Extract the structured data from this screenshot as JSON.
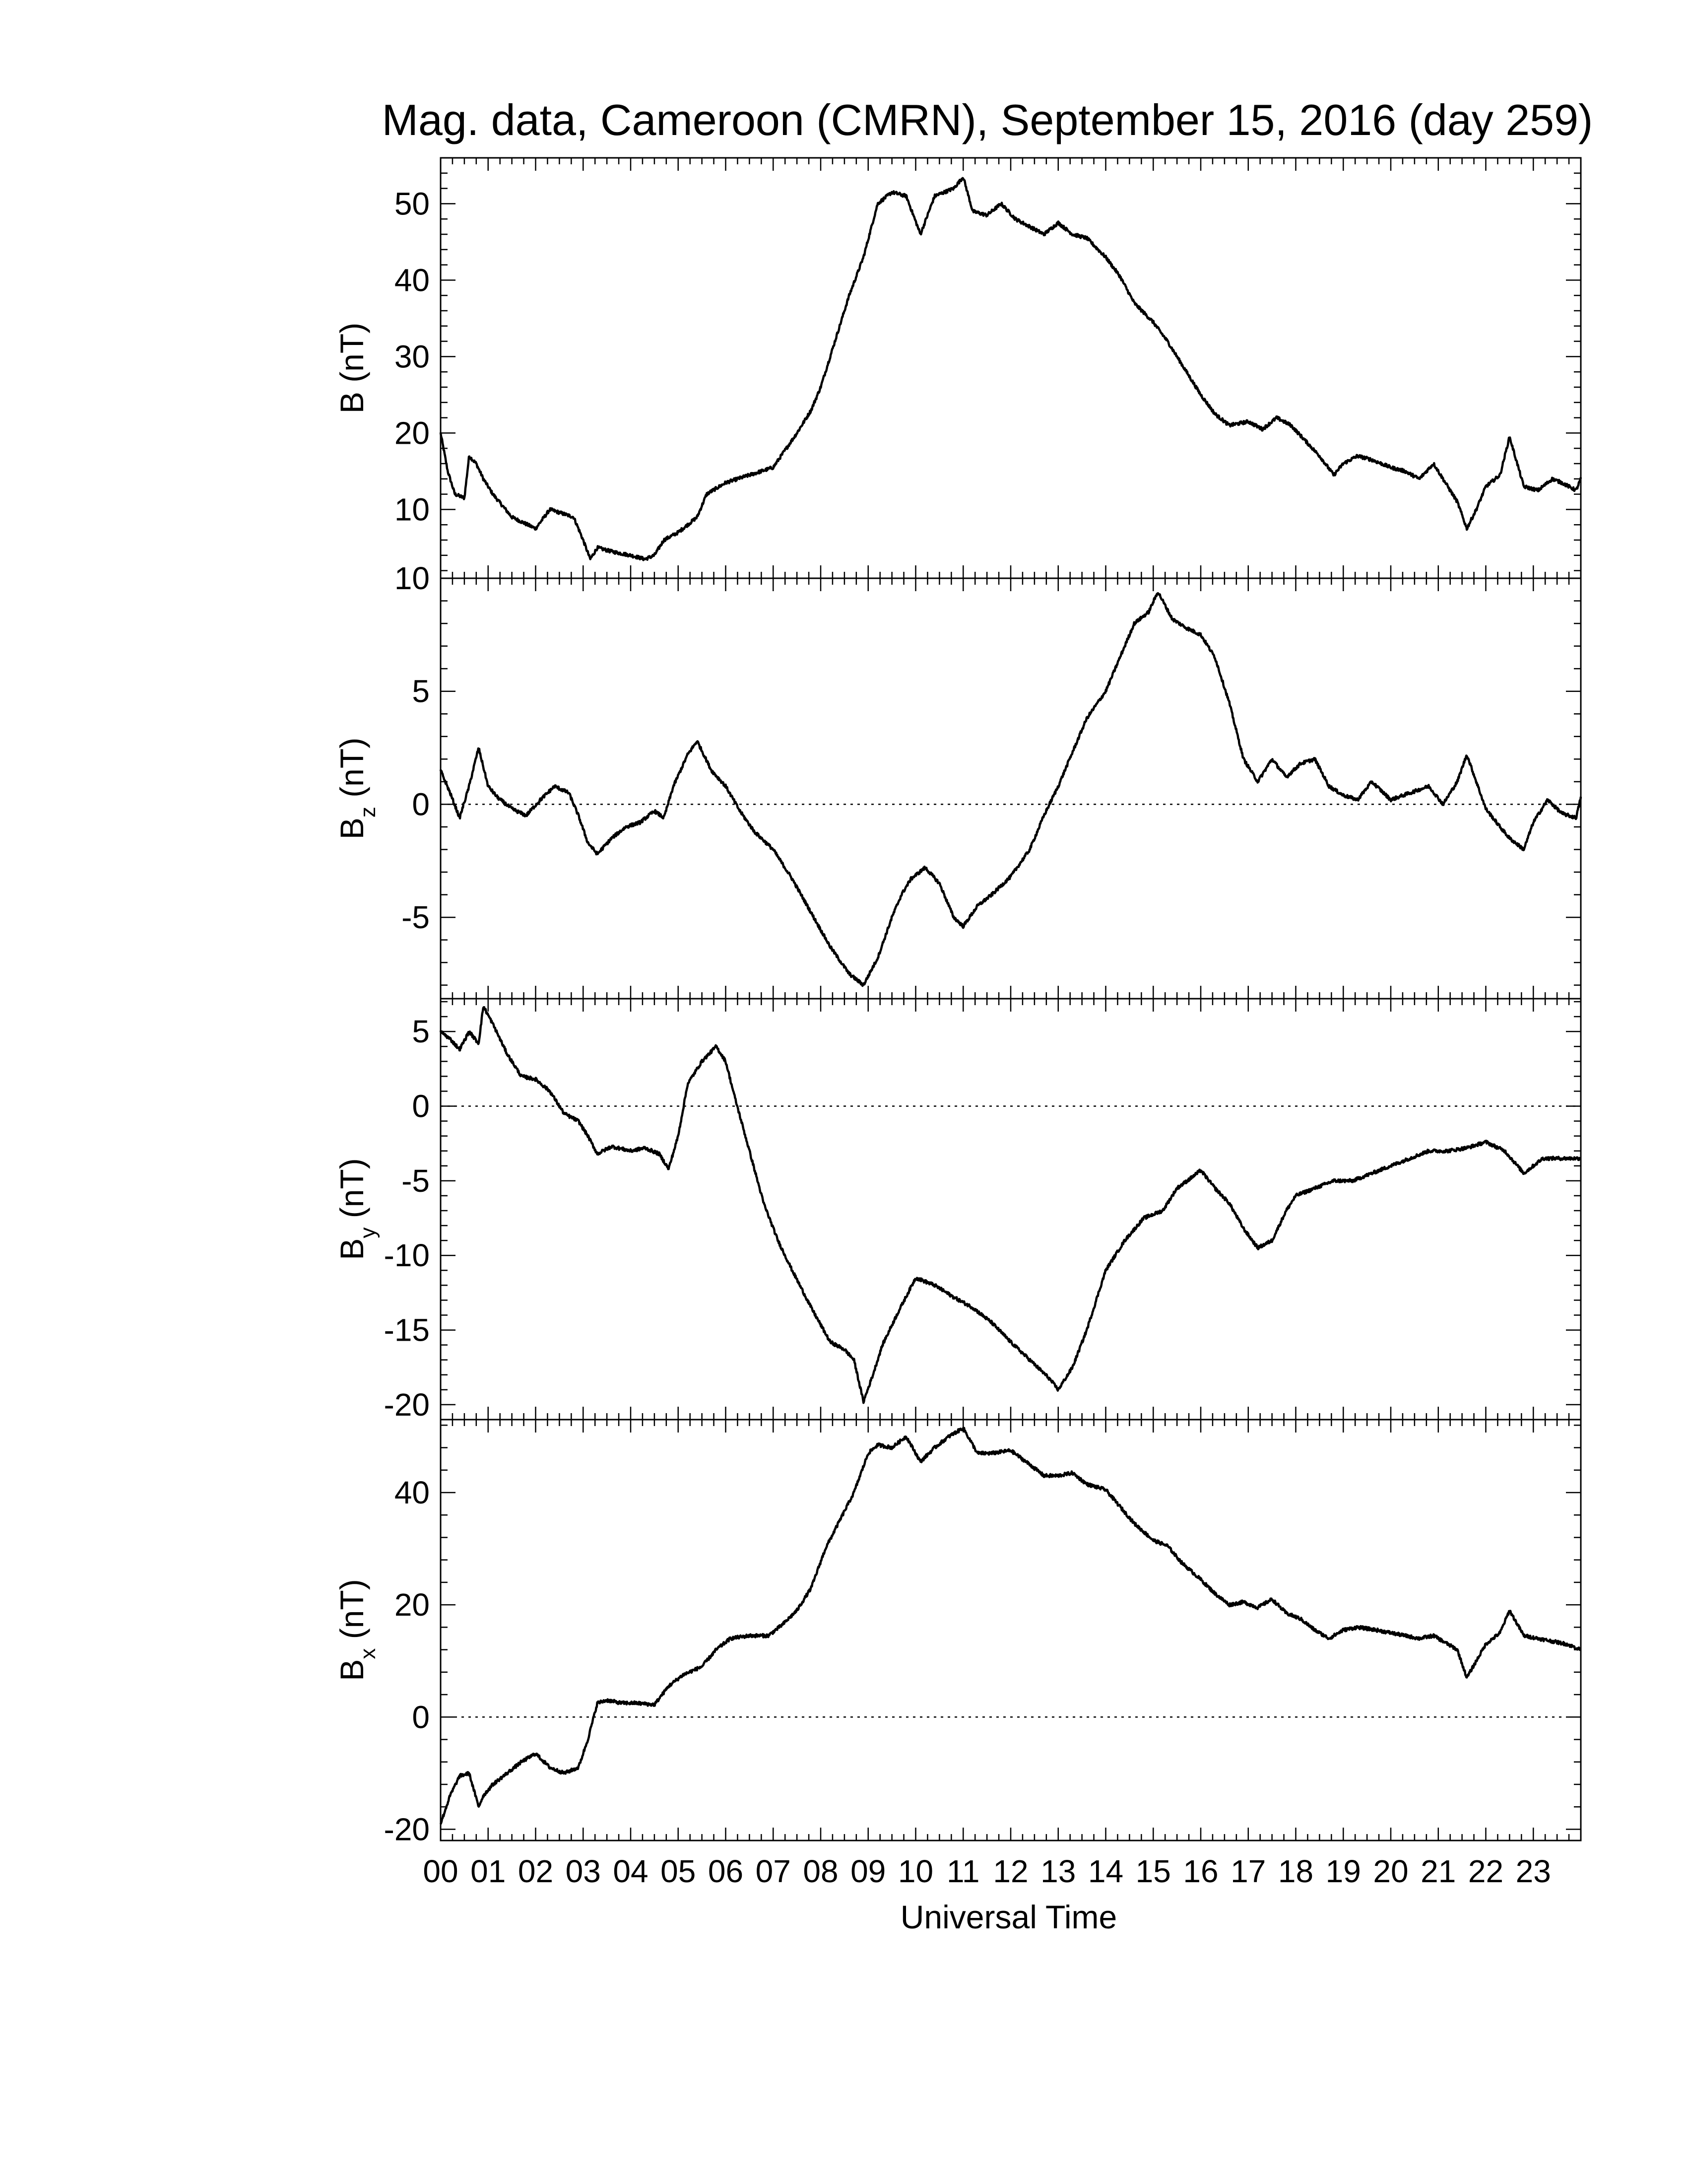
{
  "chart_data": {
    "type": "line",
    "title": "Mag. data, Cameroon (CMRN), September 15, 2016 (day 259)",
    "xlabel": "Universal Time",
    "xlim": [
      0,
      24
    ],
    "x_tick_labels": [
      "00",
      "01",
      "02",
      "03",
      "04",
      "05",
      "06",
      "07",
      "08",
      "09",
      "10",
      "11",
      "12",
      "13",
      "14",
      "15",
      "16",
      "17",
      "18",
      "19",
      "20",
      "21",
      "22",
      "23"
    ],
    "panels": [
      {
        "ylabel_main": "B",
        "ylabel_sub": "",
        "ylabel_unit": " (nT)",
        "ylim": [
          1,
          56
        ],
        "ticks": [
          10,
          20,
          30,
          40,
          50
        ],
        "tick_labels": [
          "10",
          "20",
          "30",
          "40",
          "50"
        ],
        "zero_line": false,
        "x": [
          0,
          0.15,
          0.3,
          0.5,
          0.6,
          0.75,
          0.9,
          1.1,
          1.5,
          2.0,
          2.3,
          2.8,
          3.0,
          3.15,
          3.3,
          3.6,
          4.0,
          4.3,
          4.5,
          4.7,
          5.0,
          5.4,
          5.6,
          6.0,
          6.5,
          7.0,
          7.5,
          7.8,
          8.0,
          8.3,
          8.6,
          8.9,
          9.2,
          9.5,
          9.8,
          10.1,
          10.4,
          10.8,
          11.0,
          11.2,
          11.5,
          11.8,
          12.1,
          12.4,
          12.7,
          13.0,
          13.3,
          13.6,
          14.0,
          14.3,
          14.6,
          15.0,
          15.3,
          15.6,
          16.0,
          16.3,
          16.6,
          17.0,
          17.3,
          17.6,
          17.9,
          18.2,
          18.5,
          18.8,
          19.0,
          19.3,
          19.6,
          20.0,
          20.3,
          20.6,
          20.9,
          21.2,
          21.4,
          21.6,
          21.8,
          22.0,
          22.3,
          22.5,
          22.8,
          23.1,
          23.4,
          23.6,
          23.9,
          24.0
        ],
        "y": [
          20,
          15,
          12,
          11.5,
          17,
          16,
          14,
          12,
          9,
          7.5,
          10,
          9,
          6,
          3.5,
          5,
          4.5,
          4,
          3.5,
          4,
          6,
          7,
          9,
          12,
          13.5,
          14.5,
          15.5,
          20,
          23,
          26,
          32,
          38,
          43,
          50,
          51.5,
          51,
          46,
          51,
          52,
          53.5,
          49,
          48.5,
          50,
          48,
          47,
          46,
          47.5,
          46,
          45.5,
          43,
          40.5,
          37,
          34.5,
          32,
          29,
          25,
          22.5,
          21,
          21.5,
          20.5,
          22,
          21,
          19,
          17,
          14.5,
          16,
          17,
          16.5,
          15.5,
          15,
          14,
          16,
          13,
          11,
          7.5,
          10,
          13,
          14.5,
          19.5,
          13,
          12.5,
          14,
          13.5,
          12.5,
          14
        ]
      },
      {
        "ylabel_main": "B",
        "ylabel_sub": "z",
        "ylabel_unit": " (nT)",
        "ylim": [
          -8.6,
          10
        ],
        "ticks": [
          -5,
          0,
          5,
          10
        ],
        "tick_labels": [
          "-5",
          "0",
          "5",
          "10"
        ],
        "zero_line": true,
        "x": [
          0,
          0.2,
          0.4,
          0.6,
          0.8,
          1.0,
          1.2,
          1.5,
          1.8,
          2.1,
          2.4,
          2.7,
          2.9,
          3.1,
          3.3,
          3.6,
          3.9,
          4.2,
          4.5,
          4.7,
          4.9,
          5.2,
          5.4,
          5.7,
          6.0,
          6.3,
          6.6,
          7.0,
          7.4,
          7.8,
          8.2,
          8.6,
          8.9,
          9.2,
          9.5,
          9.7,
          9.9,
          10.2,
          10.5,
          10.8,
          11.0,
          11.3,
          11.6,
          12.0,
          12.4,
          12.7,
          13.0,
          13.3,
          13.6,
          14.0,
          14.3,
          14.6,
          14.9,
          15.1,
          15.4,
          15.7,
          16.0,
          16.3,
          16.6,
          16.9,
          17.2,
          17.5,
          17.8,
          18.1,
          18.4,
          18.7,
          19.0,
          19.3,
          19.6,
          20.0,
          20.4,
          20.8,
          21.1,
          21.4,
          21.6,
          21.8,
          22.0,
          22.3,
          22.5,
          22.8,
          23.0,
          23.3,
          23.6,
          23.9,
          24.0
        ],
        "y": [
          1.5,
          0.5,
          -0.6,
          0.8,
          2.5,
          0.8,
          0.3,
          -0.2,
          -0.5,
          0.2,
          0.8,
          0.5,
          -0.5,
          -1.7,
          -2.2,
          -1.5,
          -1.0,
          -0.8,
          -0.3,
          -0.6,
          0.8,
          2.2,
          2.8,
          1.5,
          0.8,
          -0.3,
          -1.2,
          -2.0,
          -3.3,
          -4.8,
          -6.3,
          -7.5,
          -8.0,
          -6.8,
          -5.0,
          -4.0,
          -3.3,
          -2.8,
          -3.5,
          -5.0,
          -5.4,
          -4.5,
          -4.0,
          -3.2,
          -2.0,
          -0.5,
          0.8,
          2.3,
          3.8,
          5.0,
          6.5,
          8.0,
          8.5,
          9.4,
          8.2,
          7.8,
          7.5,
          6.5,
          4.5,
          2.0,
          1.0,
          2.0,
          1.2,
          1.8,
          2.0,
          0.8,
          0.4,
          0.2,
          1.0,
          0.2,
          0.5,
          0.8,
          0.0,
          1.0,
          2.2,
          1.0,
          -0.2,
          -1.0,
          -1.5,
          -2.0,
          -0.8,
          0.2,
          -0.4,
          -0.6,
          0.3
        ]
      },
      {
        "ylabel_main": "B",
        "ylabel_sub": "y",
        "ylabel_unit": " (nT)",
        "ylim": [
          -21,
          7.2
        ],
        "ticks": [
          -20,
          -15,
          -10,
          -5,
          0,
          5
        ],
        "tick_labels": [
          "-20",
          "-15",
          "-10",
          "-5",
          "0",
          "5"
        ],
        "zero_line": true,
        "x": [
          0,
          0.2,
          0.4,
          0.6,
          0.8,
          0.9,
          1.1,
          1.4,
          1.7,
          2.0,
          2.3,
          2.6,
          2.9,
          3.1,
          3.3,
          3.6,
          4.0,
          4.3,
          4.6,
          4.8,
          5.0,
          5.2,
          5.5,
          5.8,
          6.0,
          6.2,
          6.5,
          6.8,
          7.1,
          7.4,
          7.8,
          8.2,
          8.5,
          8.7,
          8.9,
          9.1,
          9.3,
          9.6,
          10.0,
          10.4,
          10.8,
          11.2,
          11.6,
          12.0,
          12.4,
          12.8,
          13.0,
          13.3,
          13.6,
          14.0,
          14.4,
          14.8,
          15.2,
          15.5,
          15.8,
          16.0,
          16.3,
          16.6,
          16.9,
          17.2,
          17.5,
          17.8,
          18.0,
          18.4,
          18.8,
          19.2,
          19.6,
          20.0,
          20.4,
          20.8,
          21.2,
          21.6,
          22.0,
          22.4,
          22.8,
          23.2,
          23.6,
          24.0
        ],
        "y": [
          5.0,
          4.5,
          3.8,
          5.0,
          4.2,
          6.7,
          5.5,
          3.5,
          2.0,
          1.8,
          1.0,
          -0.5,
          -1.0,
          -2.0,
          -3.2,
          -2.7,
          -3.0,
          -2.8,
          -3.2,
          -4.2,
          -2.0,
          1.5,
          3.0,
          4.0,
          3.0,
          0.5,
          -3.0,
          -6.5,
          -9.0,
          -11.0,
          -13.5,
          -15.8,
          -16.3,
          -17.0,
          -19.8,
          -18.0,
          -16.0,
          -14.0,
          -11.5,
          -12.0,
          -12.8,
          -13.5,
          -14.5,
          -15.8,
          -17.0,
          -18.2,
          -19.0,
          -17.5,
          -15.0,
          -11.0,
          -9.0,
          -7.5,
          -7.0,
          -5.5,
          -4.8,
          -4.3,
          -5.5,
          -6.5,
          -8.2,
          -9.5,
          -9.0,
          -7.0,
          -6.0,
          -5.5,
          -5.0,
          -5.0,
          -4.5,
          -4.0,
          -3.5,
          -3.0,
          -3.0,
          -2.8,
          -2.4,
          -3.0,
          -4.5,
          -3.5,
          -3.5,
          -3.5
        ]
      },
      {
        "ylabel_main": "B",
        "ylabel_sub": "x",
        "ylabel_unit": " (nT)",
        "ylim": [
          -22,
          53
        ],
        "ticks": [
          -20,
          0,
          20,
          40
        ],
        "tick_labels": [
          "-20",
          "0",
          "20",
          "40"
        ],
        "zero_line": true,
        "x": [
          0,
          0.2,
          0.4,
          0.6,
          0.7,
          0.8,
          0.9,
          1.1,
          1.4,
          1.7,
          2.0,
          2.3,
          2.6,
          2.9,
          3.1,
          3.3,
          3.5,
          3.8,
          4.1,
          4.5,
          4.8,
          5.1,
          5.5,
          5.8,
          6.1,
          6.5,
          6.9,
          7.2,
          7.5,
          7.8,
          8.1,
          8.4,
          8.7,
          9.0,
          9.2,
          9.5,
          9.8,
          10.1,
          10.4,
          10.7,
          11.0,
          11.3,
          11.6,
          12.0,
          12.4,
          12.7,
          13.0,
          13.3,
          13.6,
          14.0,
          14.3,
          14.6,
          15.0,
          15.3,
          15.6,
          16.0,
          16.3,
          16.6,
          16.9,
          17.2,
          17.5,
          17.8,
          18.1,
          18.4,
          18.7,
          19.0,
          19.3,
          19.7,
          20.0,
          20.3,
          20.6,
          20.9,
          21.2,
          21.4,
          21.6,
          21.8,
          22.0,
          22.3,
          22.5,
          22.8,
          23.1,
          23.4,
          23.7,
          24.0
        ],
        "y": [
          -19,
          -14,
          -10.5,
          -10,
          -13,
          -16,
          -14,
          -12,
          -10,
          -8,
          -6.5,
          -9,
          -10,
          -9,
          -4,
          2.5,
          3.0,
          2.5,
          2.5,
          2.2,
          5.5,
          7.5,
          9.0,
          12.0,
          14.0,
          14.5,
          14.5,
          16.5,
          19.0,
          23.0,
          30.0,
          35.0,
          40.0,
          47.0,
          48.5,
          48.0,
          50.0,
          45.5,
          48.0,
          50.0,
          51.5,
          47.0,
          47.0,
          47.5,
          45.0,
          43.0,
          43.0,
          43.5,
          41.5,
          40.5,
          37.5,
          34.5,
          31.5,
          30.5,
          27.5,
          24.5,
          22.0,
          20.0,
          20.5,
          19.5,
          21.0,
          18.5,
          17.5,
          15.5,
          14.0,
          15.5,
          16.0,
          15.5,
          15.0,
          14.5,
          14.0,
          14.5,
          13.0,
          12.0,
          7.0,
          10.0,
          13.0,
          15.0,
          19.0,
          14.5,
          14.0,
          13.5,
          13.0,
          12.0
        ]
      }
    ]
  }
}
